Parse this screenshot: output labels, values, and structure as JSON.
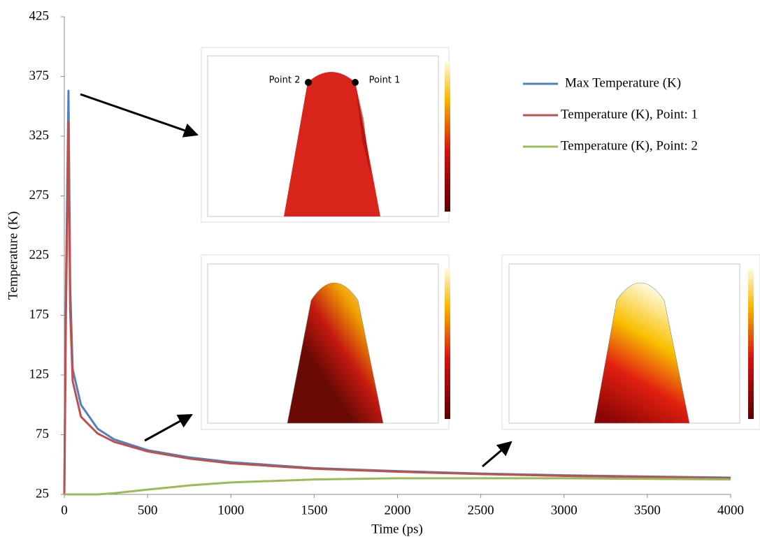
{
  "chart_data": {
    "type": "line",
    "xlabel": "Time (ps)",
    "ylabel": "Temperature (K)",
    "x": [
      0,
      10,
      25,
      35,
      50,
      100,
      200,
      300,
      500,
      750,
      1000,
      1500,
      2000,
      2500,
      3000,
      3500,
      4000
    ],
    "series": [
      {
        "name": "Max Temperature (K)",
        "color": "#4f81bd",
        "values": [
          25,
          200,
          363,
          200,
          130,
          100,
          80,
          71,
          62,
          56,
          52,
          47,
          44.5,
          42.5,
          41,
          40,
          39
        ]
      },
      {
        "name": "Temperature (K), Point: 1",
        "color": "#c0504d",
        "values": [
          25,
          180,
          337,
          180,
          120,
          90,
          76,
          69,
          61,
          55,
          51,
          46.5,
          44,
          42,
          40.5,
          39.5,
          38.5
        ]
      },
      {
        "name": "Temperature (K), Point: 2",
        "color": "#9bbb59",
        "values": [
          25,
          25,
          25,
          25,
          25,
          25,
          25,
          26,
          29,
          32.5,
          35,
          37.5,
          38.5,
          38.5,
          38.5,
          38,
          37.5
        ]
      }
    ],
    "xlim": [
      0,
      4000
    ],
    "xticks": [
      0,
      500,
      1000,
      1500,
      2000,
      2500,
      3000,
      3500,
      4000
    ],
    "ylim": [
      25,
      425
    ],
    "yticks": [
      25,
      75,
      125,
      175,
      225,
      275,
      325,
      375,
      425
    ],
    "grid": false,
    "annotations": [
      "Point 2",
      "Point 1"
    ]
  }
}
